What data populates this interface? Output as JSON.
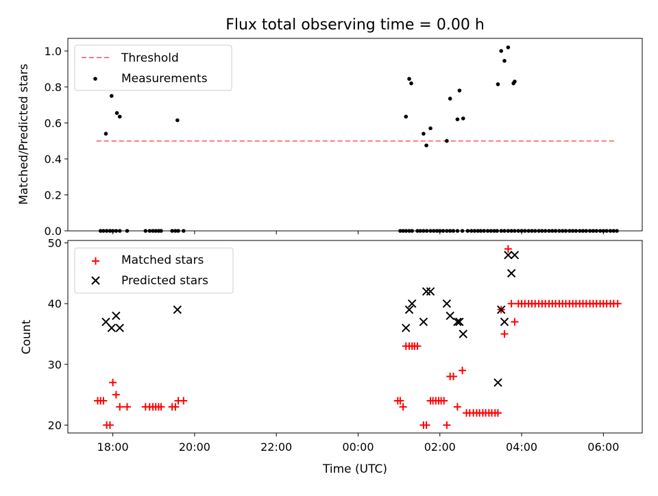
{
  "chart_data": [
    {
      "type": "scatter",
      "title": "Flux total observing time = 0.00 h",
      "xlabel": "",
      "ylabel": "Matched/Predicted stars",
      "ylim": [
        0,
        1.07
      ],
      "yticks": [
        0.0,
        0.2,
        0.4,
        0.6,
        0.8,
        1.0
      ],
      "ytick_labels": [
        "0.0",
        "0.2",
        "0.4",
        "0.6",
        "0.8",
        "1.0"
      ],
      "xlim_hours": [
        16.9,
        30.95
      ],
      "xticks_hours": [
        18,
        20,
        22,
        24,
        26,
        28,
        30
      ],
      "legend": {
        "placement": "top-left",
        "entries": [
          "Threshold",
          "Measurements"
        ]
      },
      "threshold": {
        "name": "Threshold",
        "y": 0.5,
        "x_range_hours": [
          17.6,
          30.3
        ],
        "color": "#ff7777",
        "style": "dashed"
      },
      "series": [
        {
          "name": "Measurements",
          "color": "#000000",
          "marker": "dot",
          "x_hours": [
            17.7,
            17.77,
            17.85,
            17.93,
            18.0,
            18.08,
            18.17,
            18.35,
            18.8,
            18.9,
            18.98,
            19.05,
            19.12,
            19.18,
            19.45,
            19.53,
            19.6,
            19.73,
            17.83,
            17.97,
            18.1,
            18.17,
            19.58,
            25.03,
            25.1,
            25.17,
            25.25,
            25.32,
            25.45,
            25.52,
            25.6,
            25.68,
            25.77,
            25.85,
            25.93,
            26.0,
            26.08,
            26.17,
            26.25,
            26.33,
            26.43,
            26.55,
            26.68,
            26.77,
            26.85,
            26.93,
            27.0,
            27.08,
            27.17,
            27.25,
            27.33,
            27.4,
            27.5,
            27.58,
            27.67,
            27.75,
            27.83,
            27.92,
            28.0,
            28.08,
            28.17,
            28.25,
            28.33,
            28.42,
            28.5,
            28.58,
            28.67,
            28.75,
            28.83,
            28.92,
            29.0,
            29.08,
            29.17,
            29.25,
            29.33,
            29.42,
            29.5,
            29.58,
            29.67,
            29.75,
            29.83,
            29.92,
            30.0,
            30.08,
            30.17,
            30.25,
            30.33,
            25.17,
            25.25,
            25.3,
            25.6,
            25.67,
            25.77,
            26.17,
            26.25,
            26.43,
            26.48,
            26.57,
            27.42,
            27.5,
            27.58,
            27.67,
            27.8,
            27.83
          ],
          "y": [
            0,
            0,
            0,
            0,
            0,
            0,
            0,
            0,
            0,
            0,
            0,
            0,
            0,
            0,
            0,
            0,
            0,
            0,
            0.54,
            0.75,
            0.655,
            0.635,
            0.615,
            0,
            0,
            0,
            0,
            0,
            0,
            0,
            0,
            0,
            0,
            0,
            0,
            0,
            0,
            0,
            0,
            0,
            0,
            0,
            0,
            0,
            0,
            0,
            0,
            0,
            0,
            0,
            0,
            0,
            0,
            0,
            0,
            0,
            0,
            0,
            0,
            0,
            0,
            0,
            0,
            0,
            0,
            0,
            0,
            0,
            0,
            0,
            0,
            0,
            0,
            0,
            0,
            0,
            0,
            0,
            0,
            0,
            0,
            0,
            0,
            0,
            0,
            0,
            0,
            0.635,
            0.845,
            0.82,
            0.54,
            0.475,
            0.57,
            0.5,
            0.735,
            0.62,
            0.78,
            0.625,
            0.815,
            1.0,
            0.945,
            1.02,
            0.82,
            0.83
          ]
        }
      ]
    },
    {
      "type": "scatter",
      "title": "",
      "xlabel": "Time (UTC)",
      "ylabel": "Count",
      "ylim": [
        18.7,
        50.4
      ],
      "yticks": [
        20,
        30,
        40,
        50
      ],
      "ytick_labels": [
        "20",
        "30",
        "40",
        "50"
      ],
      "xlim_hours": [
        16.9,
        30.95
      ],
      "xticks_hours": [
        18,
        20,
        22,
        24,
        26,
        28,
        30
      ],
      "xtick_labels": [
        "18:00",
        "20:00",
        "22:00",
        "00:00",
        "02:00",
        "04:00",
        "06:00"
      ],
      "legend": {
        "placement": "top-left",
        "entries": [
          "Matched stars",
          "Predicted stars"
        ]
      },
      "series": [
        {
          "name": "Matched stars",
          "color": "#ff0000",
          "marker": "plus",
          "x_hours": [
            17.63,
            17.7,
            17.77,
            17.85,
            17.93,
            18.0,
            18.08,
            18.17,
            18.35,
            18.8,
            18.9,
            18.98,
            19.05,
            19.12,
            19.18,
            19.45,
            19.53,
            19.6,
            19.73,
            24.97,
            25.03,
            25.1,
            25.17,
            25.25,
            25.32,
            25.38,
            25.45,
            25.6,
            25.67,
            25.77,
            25.83,
            25.9,
            25.97,
            26.03,
            26.1,
            26.17,
            26.25,
            26.33,
            26.43,
            26.55,
            26.65,
            26.73,
            26.82,
            26.9,
            26.97,
            27.05,
            27.12,
            27.2,
            27.27,
            27.35,
            27.42,
            27.5,
            27.58,
            27.67,
            27.75,
            27.83,
            27.92,
            28.0,
            28.08,
            28.17,
            28.25,
            28.33,
            28.42,
            28.5,
            28.58,
            28.67,
            28.75,
            28.83,
            28.92,
            29.0,
            29.08,
            29.17,
            29.25,
            29.33,
            29.42,
            29.5,
            29.58,
            29.67,
            29.75,
            29.83,
            29.92,
            30.0,
            30.08,
            30.17,
            30.25,
            30.35
          ],
          "y": [
            24,
            24,
            24,
            20,
            20,
            27,
            25,
            23,
            23,
            23,
            23,
            23,
            23,
            23,
            23,
            23,
            23,
            24,
            24,
            24,
            24,
            23,
            33,
            33,
            33,
            33,
            33,
            20,
            20,
            24,
            24,
            24,
            24,
            24,
            24,
            20,
            28,
            28,
            23,
            29,
            22,
            22,
            22,
            22,
            22,
            22,
            22,
            22,
            22,
            22,
            22,
            39,
            35,
            49,
            40,
            37,
            40,
            40,
            40,
            40,
            40,
            40,
            40,
            40,
            40,
            40,
            40,
            40,
            40,
            40,
            40,
            40,
            40,
            40,
            40,
            40,
            40,
            40,
            40,
            40,
            40,
            40,
            40,
            40,
            40,
            40
          ]
        },
        {
          "name": "Predicted stars",
          "color": "#000000",
          "marker": "x",
          "x_hours": [
            17.83,
            17.97,
            18.08,
            18.17,
            19.58,
            25.17,
            25.25,
            25.32,
            25.6,
            25.67,
            25.77,
            26.17,
            26.25,
            26.43,
            26.48,
            26.57,
            27.42,
            27.5,
            27.58,
            27.67,
            27.75,
            27.83
          ],
          "y": [
            37,
            36,
            38,
            36,
            39,
            36,
            39,
            40,
            37,
            42,
            42,
            40,
            38,
            37,
            37,
            35,
            27,
            39,
            37,
            48,
            45,
            48
          ]
        }
      ]
    }
  ]
}
